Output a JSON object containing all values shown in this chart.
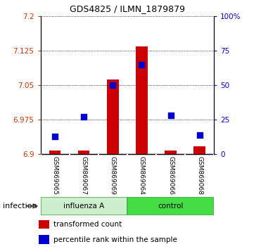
{
  "title": "GDS4825 / ILMN_1879879",
  "samples": [
    "GSM869065",
    "GSM869067",
    "GSM869069",
    "GSM869064",
    "GSM869066",
    "GSM869068"
  ],
  "red_values": [
    6.908,
    6.908,
    7.063,
    7.135,
    6.908,
    6.918
  ],
  "blue_values_pct": [
    13,
    27,
    50,
    65,
    28,
    14
  ],
  "ymin": 6.9,
  "ymax": 7.2,
  "yticks": [
    6.9,
    6.975,
    7.05,
    7.125,
    7.2
  ],
  "ytick_labels": [
    "6.9",
    "6.975",
    "7.05",
    "7.125",
    "7.2"
  ],
  "y2min": 0,
  "y2max": 100,
  "y2ticks": [
    0,
    25,
    50,
    75,
    100
  ],
  "y2tick_labels": [
    "0",
    "25",
    "50",
    "75",
    "100%"
  ],
  "bar_color": "#CC0000",
  "dot_color": "#0000CC",
  "bar_width": 0.4,
  "dot_size": 35,
  "legend_red_label": "transformed count",
  "legend_blue_label": "percentile rank within the sample",
  "bg_color": "#FFFFFF",
  "tick_label_color_left": "#CC3300",
  "tick_label_color_right": "#0000CC",
  "influenza_color": "#CCEECC",
  "control_color": "#44DD44",
  "sample_box_color": "#CCCCCC",
  "sample_box_edge": "#999999"
}
